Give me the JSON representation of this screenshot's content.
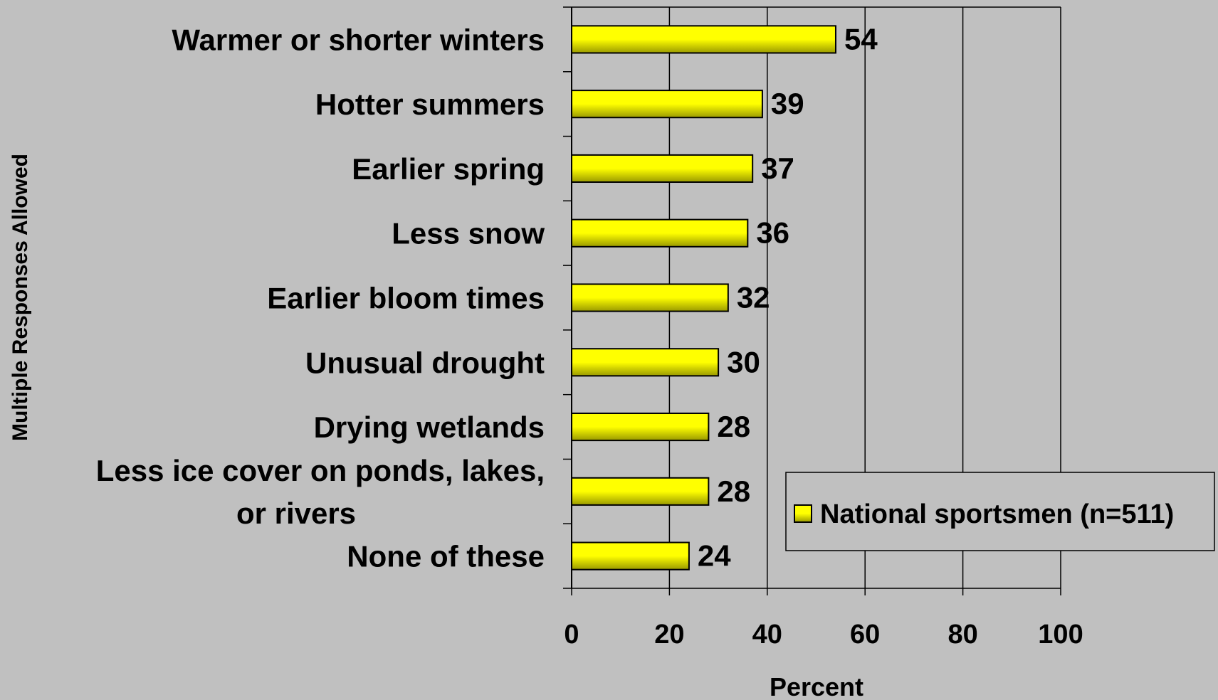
{
  "chart_data": {
    "type": "bar",
    "orientation": "horizontal",
    "categories": [
      [
        "Warmer or shorter winters"
      ],
      [
        "Hotter summers"
      ],
      [
        "Earlier spring"
      ],
      [
        "Less snow"
      ],
      [
        "Earlier bloom times"
      ],
      [
        "Unusual drought"
      ],
      [
        "Drying wetlands"
      ],
      [
        "Less ice cover on ponds, lakes,",
        "or rivers"
      ],
      [
        "None of these"
      ]
    ],
    "series": [
      {
        "name": "National sportsmen (n=511)",
        "values": [
          54,
          39,
          37,
          36,
          32,
          30,
          28,
          28,
          24
        ],
        "color": "#ffff00"
      }
    ],
    "xlabel": "Percent",
    "ylabel": "Multiple Responses Allowed",
    "xlim": [
      0,
      100
    ],
    "xticks": [
      0,
      20,
      40,
      60,
      80,
      100
    ],
    "grid": true,
    "legend_position": "right"
  },
  "colors": {
    "background": "#c0c0c0",
    "bar_fill": "#ffff00",
    "bar_edge": "#000000",
    "gridline": "#000000"
  }
}
